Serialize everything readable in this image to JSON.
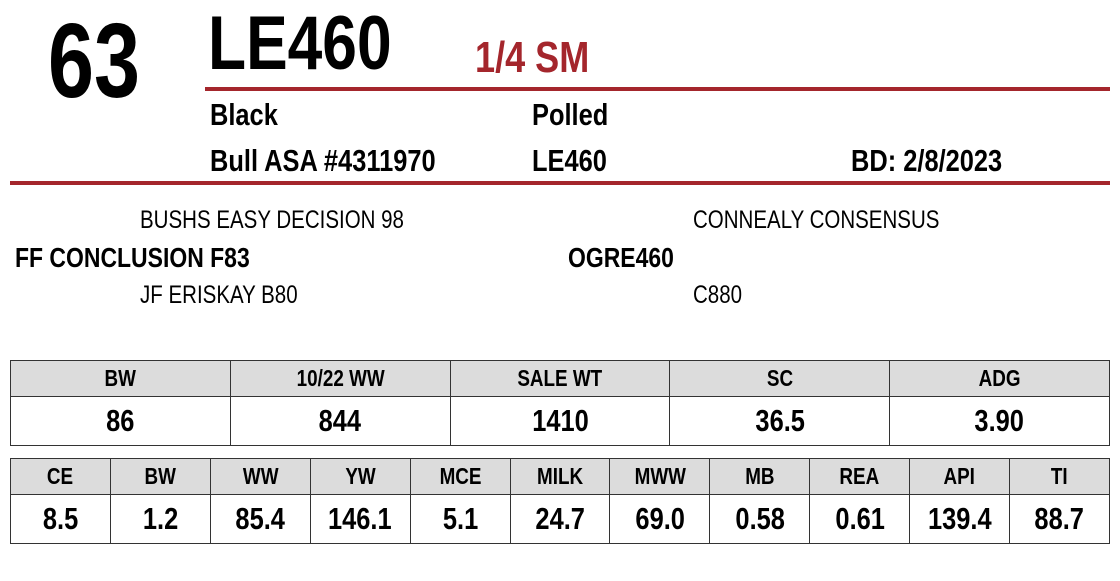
{
  "lot_number": "63",
  "animal": {
    "name": "LE460",
    "breed_fraction": "1/4 SM",
    "color": "Black",
    "horn_status": "Polled",
    "registration": "Bull ASA #4311970",
    "tattoo": "LE460",
    "birth_date": "BD: 2/8/2023"
  },
  "pedigree": {
    "sire_sire": "BUSHS EASY DECISION 98",
    "sire": "FF CONCLUSION F83",
    "sire_dam": "JF ERISKAY B80",
    "dam_sire": "CONNEALY CONSENSUS",
    "dam": "OGRE460",
    "dam_dam": "C880"
  },
  "performance": {
    "headers": [
      "BW",
      "10/22 WW",
      "SALE WT",
      "SC",
      "ADG"
    ],
    "values": [
      "86",
      "844",
      "1410",
      "36.5",
      "3.90"
    ]
  },
  "epds": {
    "headers": [
      "CE",
      "BW",
      "WW",
      "YW",
      "MCE",
      "MILK",
      "MWW",
      "MB",
      "REA",
      "API",
      "TI"
    ],
    "values": [
      "8.5",
      "1.2",
      "85.4",
      "146.1",
      "5.1",
      "24.7",
      "69.0",
      "0.58",
      "0.61",
      "139.4",
      "88.7"
    ]
  }
}
